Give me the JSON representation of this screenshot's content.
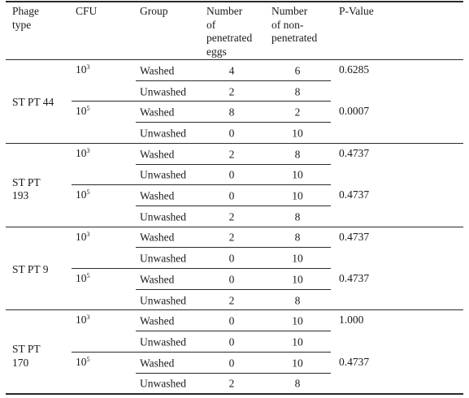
{
  "header": {
    "phage_type": [
      "Phage",
      "type"
    ],
    "cfu": "CFU",
    "group": "Group",
    "penetrated": [
      "Number",
      "of",
      "penetrated",
      "eggs"
    ],
    "non_penetrated": [
      "Number",
      "of non-",
      "penetrated"
    ],
    "p_value": "P-Value"
  },
  "blocks": [
    {
      "phage": [
        "ST PT 44"
      ],
      "doses": [
        {
          "base": "10",
          "exp": "3",
          "p_value": "0.6285",
          "rows": [
            {
              "group": "Washed",
              "pen": "4",
              "non": "6"
            },
            {
              "group": "Unwashed",
              "pen": "2",
              "non": "8"
            }
          ]
        },
        {
          "base": "10",
          "exp": "5",
          "p_value": "0.0007",
          "rows": [
            {
              "group": "Washed",
              "pen": "8",
              "non": "2"
            },
            {
              "group": "Unwashed",
              "pen": "0",
              "non": "10"
            }
          ]
        }
      ]
    },
    {
      "phage": [
        "ST PT",
        "193"
      ],
      "doses": [
        {
          "base": "10",
          "exp": "3",
          "p_value": "0.4737",
          "rows": [
            {
              "group": "Washed",
              "pen": "2",
              "non": "8"
            },
            {
              "group": "Unwashed",
              "pen": "0",
              "non": "10"
            }
          ]
        },
        {
          "base": "10",
          "exp": "5",
          "p_value": "0.4737",
          "rows": [
            {
              "group": "Washed",
              "pen": "0",
              "non": "10"
            },
            {
              "group": "Unwashed",
              "pen": "2",
              "non": "8"
            }
          ]
        }
      ]
    },
    {
      "phage": [
        "ST PT 9"
      ],
      "doses": [
        {
          "base": "10",
          "exp": "3",
          "p_value": "0.4737",
          "rows": [
            {
              "group": "Washed",
              "pen": "2",
              "non": "8"
            },
            {
              "group": "Unwashed",
              "pen": "0",
              "non": "10"
            }
          ]
        },
        {
          "base": "10",
          "exp": "5",
          "p_value": "0.4737",
          "rows": [
            {
              "group": "Washed",
              "pen": "0",
              "non": "10"
            },
            {
              "group": "Unwashed",
              "pen": "2",
              "non": "8"
            }
          ]
        }
      ]
    },
    {
      "phage": [
        "ST PT",
        "170"
      ],
      "doses": [
        {
          "base": "10",
          "exp": "3",
          "p_value": "1.000",
          "rows": [
            {
              "group": "Washed",
              "pen": "0",
              "non": "10"
            },
            {
              "group": "Unwashed",
              "pen": "0",
              "non": "10"
            }
          ]
        },
        {
          "base": "10",
          "exp": "5",
          "p_value": "0.4737",
          "rows": [
            {
              "group": "Washed",
              "pen": "0",
              "non": "10"
            },
            {
              "group": "Unwashed",
              "pen": "2",
              "non": "8"
            }
          ]
        }
      ]
    }
  ]
}
